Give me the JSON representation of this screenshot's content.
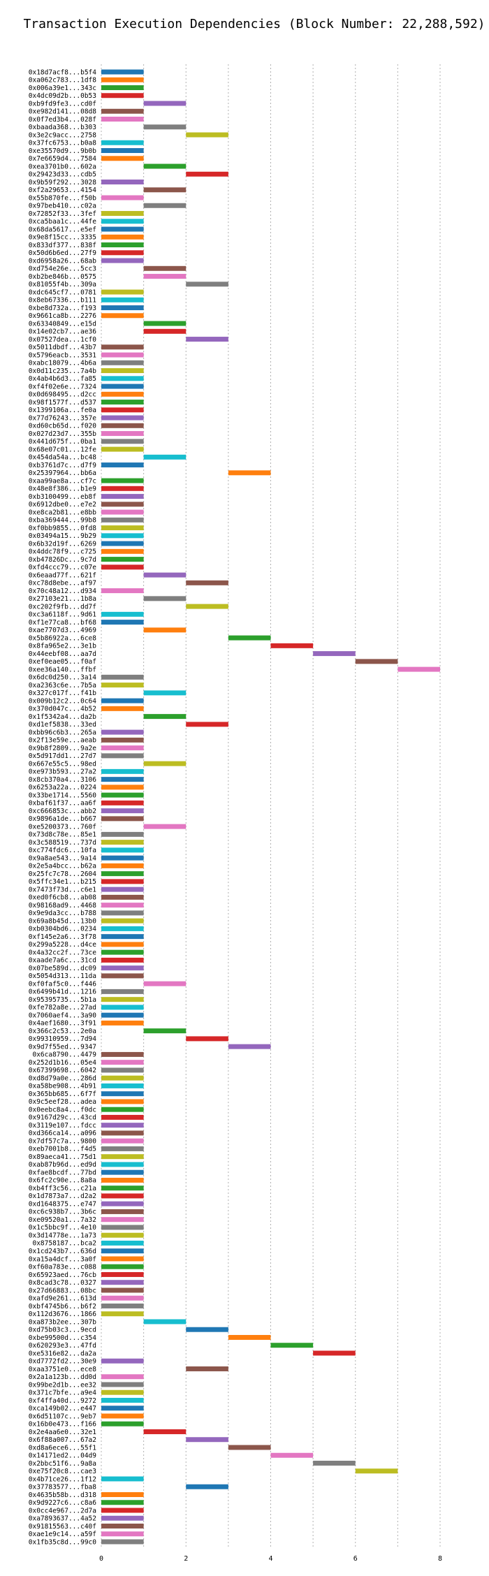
{
  "chart_data": {
    "type": "bar",
    "title": "Transaction Execution Dependencies (Block Number: 22,288,592)",
    "xlabel": "",
    "ylabel": "",
    "xlim": [
      0,
      8
    ],
    "x_ticks": [
      0,
      2,
      4,
      6,
      8
    ],
    "grid": "vertical",
    "colors": [
      "#1f77b4",
      "#ff7f0e",
      "#2ca02c",
      "#d62728",
      "#9467bd",
      "#8c564b",
      "#e377c2",
      "#7f7f7f",
      "#bcbd22",
      "#17becf"
    ],
    "bars": [
      {
        "label": "0x18d7acf8...b5f4",
        "start": 0,
        "end": 1
      },
      {
        "label": "0xa062c783...1df8",
        "start": 0,
        "end": 1
      },
      {
        "label": "0x006a39e1...343c",
        "start": 0,
        "end": 1
      },
      {
        "label": "0x4dc09d2b...0b53",
        "start": 0,
        "end": 1
      },
      {
        "label": "0xb9fd9fe3...cd0f",
        "start": 1,
        "end": 2
      },
      {
        "label": "0xe982d141...08d8",
        "start": 0,
        "end": 1
      },
      {
        "label": "0x0f7ed3b4...028f",
        "start": 0,
        "end": 1
      },
      {
        "label": "0xbaada368...b303",
        "start": 1,
        "end": 2
      },
      {
        "label": "0x3e2c9acc...2758",
        "start": 2,
        "end": 3
      },
      {
        "label": "0x37fc6753...b0a8",
        "start": 0,
        "end": 1
      },
      {
        "label": "0xe35570d9...9b0b",
        "start": 0,
        "end": 1
      },
      {
        "label": "0x7e6659d4...7584",
        "start": 0,
        "end": 1
      },
      {
        "label": "0xea3701b0...602a",
        "start": 1,
        "end": 2
      },
      {
        "label": "0x29423d33...cdb5",
        "start": 2,
        "end": 3
      },
      {
        "label": "0x9b59f292...3028",
        "start": 0,
        "end": 1
      },
      {
        "label": "0xf2a29653...4154",
        "start": 1,
        "end": 2
      },
      {
        "label": "0x55b870fe...f50b",
        "start": 0,
        "end": 1
      },
      {
        "label": "0x97beb410...c02a",
        "start": 1,
        "end": 2
      },
      {
        "label": "0x72852f33...3fef",
        "start": 0,
        "end": 1
      },
      {
        "label": "0xca5baa1c...44fe",
        "start": 0,
        "end": 1
      },
      {
        "label": "0x68da5617...e5ef",
        "start": 0,
        "end": 1
      },
      {
        "label": "0x9e8f15cc...3335",
        "start": 0,
        "end": 1
      },
      {
        "label": "0x833df377...838f",
        "start": 0,
        "end": 1
      },
      {
        "label": "0x50d6b6ed...27f9",
        "start": 0,
        "end": 1
      },
      {
        "label": "0xd6958a26...68ab",
        "start": 0,
        "end": 1
      },
      {
        "label": "0xd754e26e...5cc3",
        "start": 1,
        "end": 2
      },
      {
        "label": "0xb2be846b...0575",
        "start": 1,
        "end": 2
      },
      {
        "label": "0x81055f4b...309a",
        "start": 2,
        "end": 3
      },
      {
        "label": "0xdc645cf7...0781",
        "start": 0,
        "end": 1
      },
      {
        "label": "0x8eb67336...b111",
        "start": 0,
        "end": 1
      },
      {
        "label": "0xbe8d732a...f193",
        "start": 0,
        "end": 1
      },
      {
        "label": "0x9661ca8b...2276",
        "start": 0,
        "end": 1
      },
      {
        "label": "0x63340849...e15d",
        "start": 1,
        "end": 2
      },
      {
        "label": "0x14e02cb7...ae36",
        "start": 1,
        "end": 2
      },
      {
        "label": "0x07527dea...1cf0",
        "start": 2,
        "end": 3
      },
      {
        "label": "0x5011dbdf...43b7",
        "start": 0,
        "end": 1
      },
      {
        "label": "0x5796eacb...3531",
        "start": 0,
        "end": 1
      },
      {
        "label": "0xabc18079...4b6a",
        "start": 0,
        "end": 1
      },
      {
        "label": "0x0d11c235...7a4b",
        "start": 0,
        "end": 1
      },
      {
        "label": "0x4ab4b6d3...fa85",
        "start": 0,
        "end": 1
      },
      {
        "label": "0xf4f02e6e...7324",
        "start": 0,
        "end": 1
      },
      {
        "label": "0x0d698495...d2cc",
        "start": 0,
        "end": 1
      },
      {
        "label": "0x98f1577f...d537",
        "start": 0,
        "end": 1
      },
      {
        "label": "0x1399106a...fe0a",
        "start": 0,
        "end": 1
      },
      {
        "label": "0x77d76243...357e",
        "start": 0,
        "end": 1
      },
      {
        "label": "0xd60cb65d...f020",
        "start": 0,
        "end": 1
      },
      {
        "label": "0x027d23d7...355b",
        "start": 0,
        "end": 1
      },
      {
        "label": "0x441d675f...0ba1",
        "start": 0,
        "end": 1
      },
      {
        "label": "0x68e07c01...12fe",
        "start": 0,
        "end": 1
      },
      {
        "label": "0x454da54a...bc48",
        "start": 1,
        "end": 2
      },
      {
        "label": "0xb3761d7c...d7f9",
        "start": 0,
        "end": 1
      },
      {
        "label": "0x25397964...bb6a",
        "start": 3,
        "end": 4
      },
      {
        "label": "0xaa99ae8a...cf7c",
        "start": 0,
        "end": 1
      },
      {
        "label": "0x48e8f386...b1e9",
        "start": 0,
        "end": 1
      },
      {
        "label": "0xb3100499...eb8f",
        "start": 0,
        "end": 1
      },
      {
        "label": "0x6912dbe0...e7e2",
        "start": 0,
        "end": 1
      },
      {
        "label": "0xe8ca2b81...e8bb",
        "start": 0,
        "end": 1
      },
      {
        "label": "0xba369444...99b8",
        "start": 0,
        "end": 1
      },
      {
        "label": "0xf0bb9855...0fd8",
        "start": 0,
        "end": 1
      },
      {
        "label": "0x03494a15...9b29",
        "start": 0,
        "end": 1
      },
      {
        "label": "0x6b32d19f...6269",
        "start": 0,
        "end": 1
      },
      {
        "label": "0x4ddc78f9...c725",
        "start": 0,
        "end": 1
      },
      {
        "label": "0xb47826Dc...9c7d",
        "start": 0,
        "end": 1
      },
      {
        "label": "0xfd4ccc79...c07e",
        "start": 0,
        "end": 1
      },
      {
        "label": "0x6eaad77f...621f",
        "start": 1,
        "end": 2
      },
      {
        "label": "0xc78d8ebe...af97",
        "start": 2,
        "end": 3
      },
      {
        "label": "0x70c48a12...d934",
        "start": 0,
        "end": 1
      },
      {
        "label": "0x27103e21...1b8a",
        "start": 1,
        "end": 2
      },
      {
        "label": "0xc202f9fb...dd7f",
        "start": 2,
        "end": 3
      },
      {
        "label": "0xc3a6118f...9d61",
        "start": 0,
        "end": 1
      },
      {
        "label": "0xf1e77ca8...bf68",
        "start": 0,
        "end": 1
      },
      {
        "label": "0xae7707d3...4969",
        "start": 1,
        "end": 2
      },
      {
        "label": "0x5b86922a...6ce8",
        "start": 3,
        "end": 4
      },
      {
        "label": "0x8fa965e2...3e1b",
        "start": 4,
        "end": 5
      },
      {
        "label": "0x44eebf08...aa7d",
        "start": 5,
        "end": 6
      },
      {
        "label": "0xef0eae05...f0af",
        "start": 6,
        "end": 7
      },
      {
        "label": "0xee36a140...ffbf",
        "start": 7,
        "end": 8
      },
      {
        "label": "0x6dc0d250...3a14",
        "start": 0,
        "end": 1
      },
      {
        "label": "0xa2363c6e...7b5a",
        "start": 0,
        "end": 1
      },
      {
        "label": "0x327c017f...f41b",
        "start": 1,
        "end": 2
      },
      {
        "label": "0x009b12c2...0c64",
        "start": 0,
        "end": 1
      },
      {
        "label": "0x370d047c...4b52",
        "start": 0,
        "end": 1
      },
      {
        "label": "0x1f5342a4...da2b",
        "start": 1,
        "end": 2
      },
      {
        "label": "0xd1ef5838...33ed",
        "start": 2,
        "end": 3
      },
      {
        "label": "0xbb96c6b3...265a",
        "start": 0,
        "end": 1
      },
      {
        "label": "0x2f13e59e...aeab",
        "start": 0,
        "end": 1
      },
      {
        "label": "0x9b8f2809...9a2e",
        "start": 0,
        "end": 1
      },
      {
        "label": "0x5d917dd1...27d7",
        "start": 0,
        "end": 1
      },
      {
        "label": "0x667e55c5...98ed",
        "start": 1,
        "end": 2
      },
      {
        "label": "0xe973b593...27a2",
        "start": 0,
        "end": 1
      },
      {
        "label": "0x8cb370a4...3106",
        "start": 0,
        "end": 1
      },
      {
        "label": "0x6253a22a...0224",
        "start": 0,
        "end": 1
      },
      {
        "label": "0x33be1714...5560",
        "start": 0,
        "end": 1
      },
      {
        "label": "0xbaf61f37...aa6f",
        "start": 0,
        "end": 1
      },
      {
        "label": "0xc666853c...abb2",
        "start": 0,
        "end": 1
      },
      {
        "label": "0x9896a1de...b667",
        "start": 0,
        "end": 1
      },
      {
        "label": "0xe5200373...760f",
        "start": 1,
        "end": 2
      },
      {
        "label": "0x73d8c78e...85e1",
        "start": 0,
        "end": 1
      },
      {
        "label": "0x3c588519...737d",
        "start": 0,
        "end": 1
      },
      {
        "label": "0xc774fdc6...10fa",
        "start": 0,
        "end": 1
      },
      {
        "label": "0x9a8ae543...9a14",
        "start": 0,
        "end": 1
      },
      {
        "label": "0x2e5a4bcc...b62a",
        "start": 0,
        "end": 1
      },
      {
        "label": "0x25fc7c78...2604",
        "start": 0,
        "end": 1
      },
      {
        "label": "0x5ffc34e1...b215",
        "start": 0,
        "end": 1
      },
      {
        "label": "0x7473f73d...c6e1",
        "start": 0,
        "end": 1
      },
      {
        "label": "0xed0f6cb8...ab08",
        "start": 0,
        "end": 1
      },
      {
        "label": "0x98168ad9...4468",
        "start": 0,
        "end": 1
      },
      {
        "label": "0x9e9da3cc...b788",
        "start": 0,
        "end": 1
      },
      {
        "label": "0x69a8b45d...13b0",
        "start": 0,
        "end": 1
      },
      {
        "label": "0xb0304bd6...0234",
        "start": 0,
        "end": 1
      },
      {
        "label": "0xf145e2a6...3f78",
        "start": 0,
        "end": 1
      },
      {
        "label": "0x299a5228...d4ce",
        "start": 0,
        "end": 1
      },
      {
        "label": "0x4a32cc2f...73ce",
        "start": 0,
        "end": 1
      },
      {
        "label": "0xaade7a6c...31cd",
        "start": 0,
        "end": 1
      },
      {
        "label": "0x07be589d...dc09",
        "start": 0,
        "end": 1
      },
      {
        "label": "0x5054d313...11da",
        "start": 0,
        "end": 1
      },
      {
        "label": "0xf0faf5c0...f446",
        "start": 1,
        "end": 2
      },
      {
        "label": "0x6499b41d...1216",
        "start": 0,
        "end": 1
      },
      {
        "label": "0x95395735...5b1a",
        "start": 0,
        "end": 1
      },
      {
        "label": "0xfe782a8e...27ad",
        "start": 0,
        "end": 1
      },
      {
        "label": "0x7060aef4...3a90",
        "start": 0,
        "end": 1
      },
      {
        "label": "0x4aef1680...3f91",
        "start": 0,
        "end": 1
      },
      {
        "label": "0x366c2c53...2e0a",
        "start": 1,
        "end": 2
      },
      {
        "label": "0x99310959...7d94",
        "start": 2,
        "end": 3
      },
      {
        "label": "0x9d7f55ed...9347",
        "start": 3,
        "end": 4
      },
      {
        "label": "0x6ca8790...4479",
        "start": 0,
        "end": 1
      },
      {
        "label": "0x252d1b16...05e4",
        "start": 0,
        "end": 1
      },
      {
        "label": "0x67399698...6042",
        "start": 0,
        "end": 1
      },
      {
        "label": "0xd8d79a0e...286d",
        "start": 0,
        "end": 1
      },
      {
        "label": "0xa58be908...4b91",
        "start": 0,
        "end": 1
      },
      {
        "label": "0x365bb685...6f7f",
        "start": 0,
        "end": 1
      },
      {
        "label": "0x9c5eef28...adea",
        "start": 0,
        "end": 1
      },
      {
        "label": "0x0eebc8a4...f0dc",
        "start": 0,
        "end": 1
      },
      {
        "label": "0x9167d29c...43cd",
        "start": 0,
        "end": 1
      },
      {
        "label": "0x3119e107...fdcc",
        "start": 0,
        "end": 1
      },
      {
        "label": "0xd366ca14...a096",
        "start": 0,
        "end": 1
      },
      {
        "label": "0x7df57c7a...9800",
        "start": 0,
        "end": 1
      },
      {
        "label": "0xeb7001b8...f4d5",
        "start": 0,
        "end": 1
      },
      {
        "label": "0x89aeca41...75d1",
        "start": 0,
        "end": 1
      },
      {
        "label": "0xab87b96d...ed9d",
        "start": 0,
        "end": 1
      },
      {
        "label": "0xfae8bcdf...77bd",
        "start": 0,
        "end": 1
      },
      {
        "label": "0x6fc2c90e...8a8a",
        "start": 0,
        "end": 1
      },
      {
        "label": "0xb4ff3c56...c21a",
        "start": 0,
        "end": 1
      },
      {
        "label": "0x1d7873a7...d2a2",
        "start": 0,
        "end": 1
      },
      {
        "label": "0xd1648375...e747",
        "start": 0,
        "end": 1
      },
      {
        "label": "0xc6c938b7...3b6c",
        "start": 0,
        "end": 1
      },
      {
        "label": "0xe09520a1...7a32",
        "start": 0,
        "end": 1
      },
      {
        "label": "0x1c5bbc9f...4e10",
        "start": 0,
        "end": 1
      },
      {
        "label": "0x3d14778e...1a73",
        "start": 0,
        "end": 1
      },
      {
        "label": "0x8758187...bca2",
        "start": 0,
        "end": 1
      },
      {
        "label": "0x1cd243b7...636d",
        "start": 0,
        "end": 1
      },
      {
        "label": "0xa15a4dcf...3a0f",
        "start": 0,
        "end": 1
      },
      {
        "label": "0xf60a783e...c088",
        "start": 0,
        "end": 1
      },
      {
        "label": "0x65923aed...76cb",
        "start": 0,
        "end": 1
      },
      {
        "label": "0x8cad3c78...0327",
        "start": 0,
        "end": 1
      },
      {
        "label": "0x27d66883...08bc",
        "start": 0,
        "end": 1
      },
      {
        "label": "0xafd9e261...613d",
        "start": 0,
        "end": 1
      },
      {
        "label": "0xbf4745b6...b6f2",
        "start": 0,
        "end": 1
      },
      {
        "label": "0x112d3676...1866",
        "start": 0,
        "end": 1
      },
      {
        "label": "0xa873b2ee...307b",
        "start": 1,
        "end": 2
      },
      {
        "label": "0xd75b03c3...9ecd",
        "start": 2,
        "end": 3
      },
      {
        "label": "0xbe99500d...c354",
        "start": 3,
        "end": 4
      },
      {
        "label": "0x620293e3...47fd",
        "start": 4,
        "end": 5
      },
      {
        "label": "0xe5316e82...da2a",
        "start": 5,
        "end": 6
      },
      {
        "label": "0xd7772fd2...30e9",
        "start": 0,
        "end": 1
      },
      {
        "label": "0xaa3751e0...ece8",
        "start": 2,
        "end": 3
      },
      {
        "label": "0x2a1a123b...dd0d",
        "start": 0,
        "end": 1
      },
      {
        "label": "0x99be2d1b...ee32",
        "start": 0,
        "end": 1
      },
      {
        "label": "0x371c7bfe...a9e4",
        "start": 0,
        "end": 1
      },
      {
        "label": "0xf4ffa40d...9272",
        "start": 0,
        "end": 1
      },
      {
        "label": "0xca149b02...e447",
        "start": 0,
        "end": 1
      },
      {
        "label": "0x6d51107c...9eb7",
        "start": 0,
        "end": 1
      },
      {
        "label": "0x16b0e473...f166",
        "start": 0,
        "end": 1
      },
      {
        "label": "0x2e4aa6e0...32e1",
        "start": 1,
        "end": 2
      },
      {
        "label": "0x6f88a007...67a2",
        "start": 2,
        "end": 3
      },
      {
        "label": "0xd8a6ece6...55f1",
        "start": 3,
        "end": 4
      },
      {
        "label": "0x14171ed2...04d9",
        "start": 4,
        "end": 5
      },
      {
        "label": "0x2bbc51f6...9a8a",
        "start": 5,
        "end": 6
      },
      {
        "label": "0xe75f20c8...cae3",
        "start": 6,
        "end": 7
      },
      {
        "label": "0x4b71ce26...1f12",
        "start": 0,
        "end": 1
      },
      {
        "label": "0x37783577...fba8",
        "start": 2,
        "end": 3
      },
      {
        "label": "0x4635b58b...d318",
        "start": 0,
        "end": 1
      },
      {
        "label": "0x9d9227c6...c8a6",
        "start": 0,
        "end": 1
      },
      {
        "label": "0x0cc4e967...2d7a",
        "start": 0,
        "end": 1
      },
      {
        "label": "0xa7893637...4a52",
        "start": 0,
        "end": 1
      },
      {
        "label": "0x91815563...c40f",
        "start": 0,
        "end": 1
      },
      {
        "label": "0xae1e9c14...a59f",
        "start": 0,
        "end": 1
      },
      {
        "label": "0x1fb35c8d...99c0",
        "start": 0,
        "end": 1
      }
    ]
  }
}
